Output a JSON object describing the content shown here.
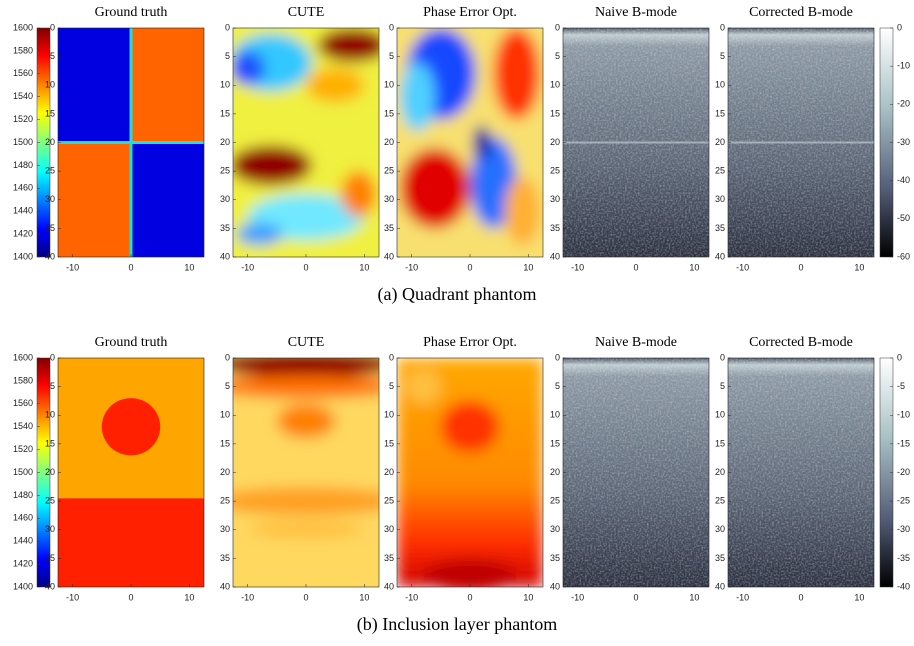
{
  "axes": {
    "xlim": [
      -12.5,
      12.5
    ],
    "ylim": [
      0,
      40
    ],
    "xticks": [
      -10,
      0,
      10
    ],
    "yticks": [
      0,
      5,
      10,
      15,
      20,
      25,
      30,
      35,
      40
    ]
  },
  "panel_titles": [
    "Ground truth",
    "CUTE",
    "Phase Error Opt.",
    "Naive B-mode",
    "Corrected B-mode"
  ],
  "speed_colorbar": {
    "range": [
      1400,
      1600
    ],
    "ticks": [
      1600,
      1580,
      1560,
      1540,
      1520,
      1500,
      1480,
      1460,
      1440,
      1420,
      1400
    ]
  },
  "rows": [
    {
      "caption": "(a) Quadrant phantom",
      "bmode_colorbar": {
        "range": [
          -60,
          0
        ],
        "ticks": [
          0,
          -10,
          -20,
          -30,
          -40,
          -50,
          -60
        ]
      }
    },
    {
      "caption": "(b) Inclusion layer phantom",
      "bmode_colorbar": {
        "range": [
          -40,
          0
        ],
        "ticks": [
          0,
          -5,
          -10,
          -15,
          -20,
          -25,
          -30,
          -35,
          -40
        ]
      }
    }
  ]
}
